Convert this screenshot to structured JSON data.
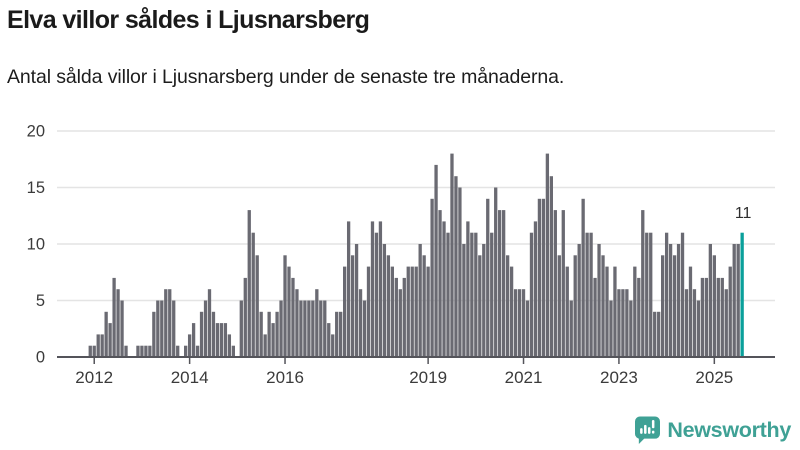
{
  "header": {
    "title": "Elva villor såldes i Ljusnarsberg",
    "subtitle": "Antal sålda villor i Ljusnarsberg under de senaste tre månaderna."
  },
  "chart_data": {
    "type": "bar",
    "title": "Elva villor såldes i Ljusnarsberg",
    "subtitle": "Antal sålda villor i Ljusnarsberg under de senaste tre månaderna.",
    "ylim": [
      0,
      20
    ],
    "grid": true,
    "legend_position": "none",
    "y_tick_values": [
      0,
      5,
      10,
      15,
      20
    ],
    "y_tick_labels": [
      "0",
      "5",
      "10",
      "15",
      "20"
    ],
    "x_tick_labels": [
      "2012",
      "2014",
      "2016",
      "2019",
      "2021",
      "2023",
      "2025"
    ],
    "x_tick_month_indices": [
      1,
      25,
      49,
      85,
      109,
      133,
      157
    ],
    "values": [
      1,
      1,
      2,
      2,
      4,
      3,
      7,
      6,
      5,
      1,
      0,
      0,
      1,
      1,
      1,
      1,
      4,
      5,
      5,
      6,
      6,
      5,
      1,
      0,
      1,
      2,
      3,
      1,
      4,
      5,
      6,
      4,
      3,
      3,
      3,
      2,
      1,
      0,
      5,
      7,
      13,
      11,
      9,
      4,
      2,
      4,
      3,
      4,
      5,
      9,
      8,
      7,
      6,
      5,
      5,
      5,
      5,
      6,
      5,
      5,
      3,
      2,
      4,
      4,
      8,
      12,
      9,
      10,
      6,
      5,
      8,
      12,
      11,
      12,
      10,
      9,
      8,
      7,
      6,
      7,
      8,
      8,
      8,
      10,
      9,
      8,
      14,
      17,
      13,
      12,
      11,
      18,
      16,
      15,
      10,
      12,
      11,
      11,
      9,
      10,
      14,
      11,
      15,
      13,
      13,
      9,
      8,
      6,
      6,
      6,
      5,
      11,
      12,
      14,
      14,
      18,
      16,
      13,
      9,
      13,
      8,
      5,
      9,
      10,
      14,
      11,
      11,
      7,
      10,
      9,
      8,
      5,
      8,
      6,
      6,
      6,
      5,
      8,
      7,
      13,
      11,
      11,
      4,
      4,
      9,
      11,
      10,
      9,
      10,
      11,
      6,
      8,
      6,
      5,
      7,
      7,
      10,
      9,
      7,
      7,
      6,
      8,
      10,
      10,
      11
    ],
    "highlight": {
      "index": 164,
      "value": 11,
      "label": "11",
      "color": "#0aa09b"
    },
    "bar_color": "#6a6a72",
    "gridline_color": "#e4e4e4",
    "axis_color": "#54545a",
    "tick_label_color": "#3b3b3b",
    "annotation_color": "#2e2e2e"
  },
  "branding": {
    "logo_text": "Newsworthy",
    "logo_color": "#3fa195",
    "logo_icon": "newsworthy-bar-chart-bubble-icon"
  }
}
